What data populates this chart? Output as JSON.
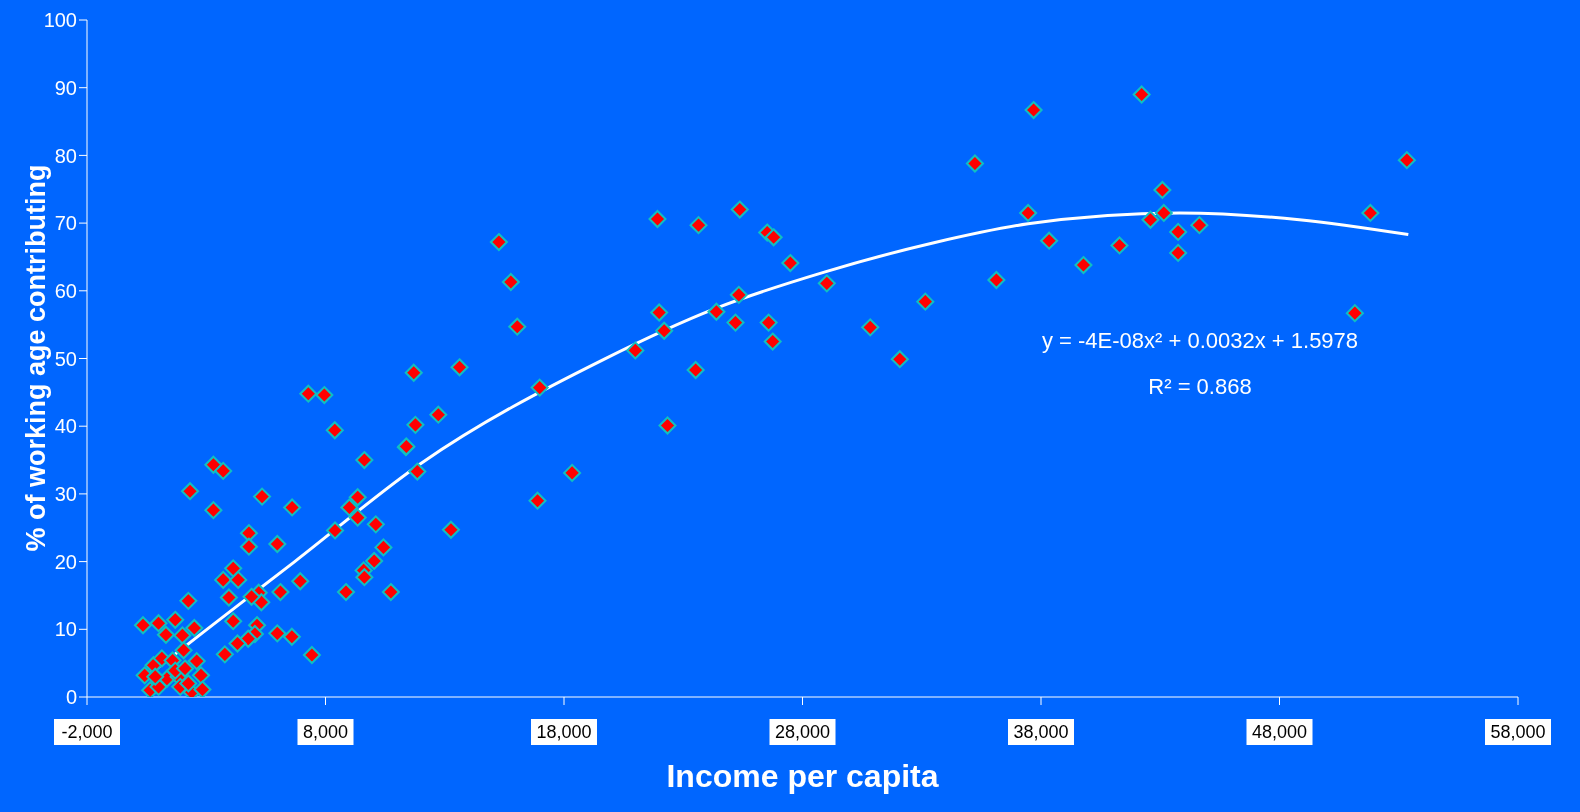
{
  "chart_data": {
    "type": "scatter",
    "xlabel": "Income per capita",
    "ylabel": "% of working age contributing",
    "xlim": [
      -2000,
      58000
    ],
    "xticks": [
      {
        "value": -2000,
        "label": "-2,000"
      },
      {
        "value": 8000,
        "label": "8,000"
      },
      {
        "value": 18000,
        "label": "18,000"
      },
      {
        "value": 28000,
        "label": "28,000"
      },
      {
        "value": 38000,
        "label": "38,000"
      },
      {
        "value": 48000,
        "label": "48,000"
      },
      {
        "value": 58000,
        "label": "58,000"
      }
    ],
    "ylim": [
      0,
      100
    ],
    "yticks": [
      0,
      10,
      20,
      30,
      40,
      50,
      60,
      70,
      80,
      90,
      100
    ],
    "grid": false,
    "legend": false,
    "marker": "diamond",
    "annotations": [
      "y = -4E-08x² + 0.0032x + 1.5978",
      "R² = 0.868"
    ],
    "series": [
      {
        "type": "scatter",
        "color": "#ff0000",
        "x": [
          348,
          1000,
          1700,
          2500,
          1310,
          2000,
          2250,
          2320,
          3300,
          3710,
          3300,
          5340,
          6600,
          4790,
          4790,
          5980,
          4130,
          3710,
          4340,
          3950,
          5200,
          5310,
          4900,
          6110,
          6940,
          4130,
          5130,
          5040,
          4760,
          4310,
          3780,
          5980,
          6590,
          7430,
          8860,
          10740,
          9600,
          9630,
          10040,
          10430,
          10110,
          9350,
          9350,
          9000,
          8400,
          9630,
          11370,
          11850,
          417,
          790,
          1140,
          1590,
          2050,
          2600,
          2780,
          650,
          1000,
          1350,
          1840,
          1910,
          2390,
          2840,
          2250,
          1700,
          860,
          2110,
          15770,
          16040,
          11700,
          13620,
          7280,
          7950,
          8390,
          11770,
          12730,
          11390,
          16980,
          18340,
          16890,
          13260,
          15270,
          21920,
          23640,
          25370,
          26520,
          26790,
          27490,
          29020,
          33150,
          25330,
          21990,
          22200,
          20990,
          24390,
          25190,
          26580,
          26750,
          23520,
          22340,
          30840,
          32080,
          36130,
          35230,
          37690,
          37460,
          38340,
          39780,
          41290,
          42220,
          42590,
          43090,
          43150,
          43750,
          43750,
          44640,
          51160,
          51810,
          53340
        ],
        "values": [
          10.6,
          10.9,
          11.4,
          10.2,
          9.2,
          9.1,
          14.2,
          30.4,
          34.3,
          33.4,
          27.6,
          29.6,
          28.0,
          24.2,
          22.2,
          22.6,
          19.0,
          17.3,
          17.3,
          14.7,
          15.4,
          14.0,
          14.8,
          15.5,
          17.1,
          11.2,
          10.6,
          9.3,
          8.6,
          7.9,
          6.3,
          9.4,
          8.9,
          6.2,
          15.5,
          15.5,
          18.7,
          17.7,
          20.1,
          22.1,
          25.5,
          26.5,
          29.5,
          28.0,
          24.6,
          35.0,
          36.9,
          33.3,
          3.2,
          4.7,
          5.7,
          5.4,
          6.9,
          5.3,
          3.2,
          1.0,
          1.5,
          2.7,
          3.0,
          1.5,
          0.7,
          1.1,
          2.0,
          3.9,
          3.0,
          4.2,
          61.3,
          54.7,
          47.9,
          48.7,
          44.8,
          44.6,
          39.4,
          40.2,
          41.7,
          37.0,
          45.7,
          33.1,
          29.0,
          24.7,
          67.2,
          70.6,
          69.7,
          72.0,
          68.6,
          67.9,
          64.1,
          61.1,
          58.4,
          59.4,
          56.8,
          54.1,
          51.2,
          56.9,
          55.3,
          55.3,
          52.5,
          48.3,
          40.1,
          54.6,
          49.9,
          61.6,
          78.8,
          86.7,
          71.5,
          67.4,
          63.8,
          66.7,
          89.0,
          70.5,
          74.9,
          71.5,
          68.7,
          65.6,
          69.7,
          56.7,
          71.5,
          79.3
        ]
      },
      {
        "type": "line",
        "color": "#ffffff",
        "marker": "none",
        "x": [
          376,
          2920,
          6710,
          12000,
          19630,
          24360,
          28950,
          33510,
          37460,
          43800,
          48830,
          53400
        ],
        "values": [
          2.7,
          9.7,
          20.0,
          34.5,
          49.8,
          57.4,
          62.8,
          67.1,
          69.9,
          71.5,
          70.5,
          68.3
        ]
      }
    ]
  }
}
